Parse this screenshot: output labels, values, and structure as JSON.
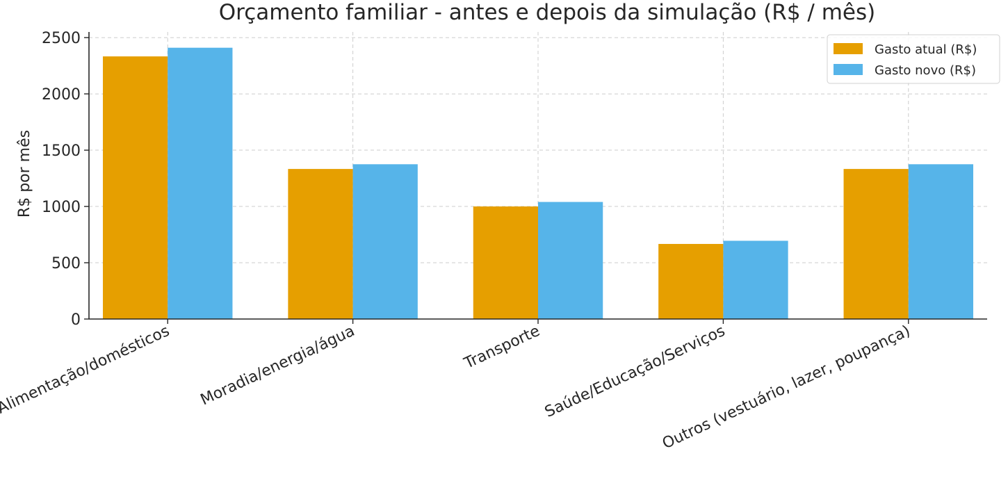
{
  "chart_data": {
    "type": "bar",
    "title": "Orçamento familiar - antes e depois da simulação (R$ / mês)",
    "xlabel": "",
    "ylabel": "R$ por mês",
    "categories": [
      "Alimentação/domésticos",
      "Moradia/energia/água",
      "Transporte",
      "Saúde/Educação/Serviços",
      "Outros (vestuário, lazer, poupança)"
    ],
    "series": [
      {
        "name": "Gasto atual (R$)",
        "color": "#E69F00",
        "values": [
          2333,
          1333,
          1000,
          667,
          1333
        ]
      },
      {
        "name": "Gasto novo (R$)",
        "color": "#56B4E9",
        "values": [
          2410,
          1375,
          1040,
          695,
          1375
        ]
      }
    ],
    "ylim": [
      0,
      2550
    ],
    "yticks": [
      0,
      500,
      1000,
      1500,
      2000,
      2500
    ],
    "grid": true,
    "legend": "top-right"
  }
}
